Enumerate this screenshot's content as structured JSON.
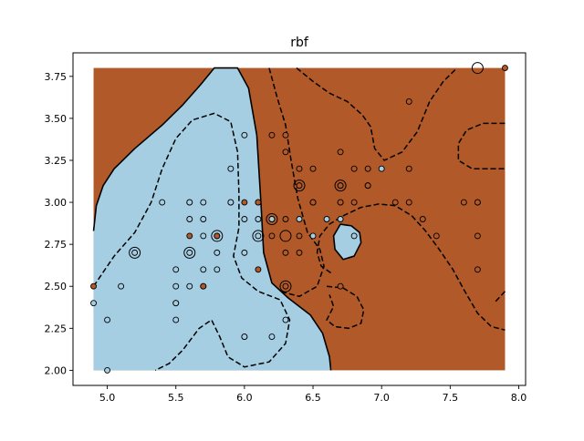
{
  "chart_data": {
    "type": "scatter",
    "title": "rbf",
    "xlabel": "",
    "ylabel": "",
    "xlim": [
      4.75,
      8.05
    ],
    "ylim": [
      1.91,
      3.89
    ],
    "grid": false,
    "legend": "none",
    "x_ticks": [
      5.0,
      5.5,
      6.0,
      6.5,
      7.0,
      7.5,
      8.0
    ],
    "x_tick_labels": [
      "5.0",
      "5.5",
      "6.0",
      "6.5",
      "7.0",
      "7.5",
      "8.0"
    ],
    "y_ticks": [
      2.0,
      2.25,
      2.5,
      2.75,
      3.0,
      3.25,
      3.5,
      3.75
    ],
    "y_tick_labels": [
      "2.00",
      "2.25",
      "2.50",
      "2.75",
      "3.00",
      "3.25",
      "3.50",
      "3.75"
    ],
    "decision_region": {
      "x_range": [
        4.9,
        7.9
      ],
      "y_range": [
        2.0,
        3.8
      ]
    },
    "colors": {
      "class_0": "#a6cee3",
      "class_1": "#b15928",
      "boundary": "#000000",
      "axes": "#000000"
    },
    "decision_boundary": [
      [
        4.9,
        2.83
      ],
      [
        4.92,
        2.98
      ],
      [
        4.97,
        3.1
      ],
      [
        5.05,
        3.2
      ],
      [
        5.2,
        3.32
      ],
      [
        5.4,
        3.46
      ],
      [
        5.55,
        3.58
      ],
      [
        5.68,
        3.7
      ],
      [
        5.78,
        3.8
      ],
      [
        5.95,
        3.8
      ],
      [
        6.03,
        3.68
      ],
      [
        6.09,
        3.4
      ],
      [
        6.12,
        3.0
      ],
      [
        6.14,
        2.7
      ],
      [
        6.2,
        2.52
      ],
      [
        6.32,
        2.43
      ],
      [
        6.48,
        2.33
      ],
      [
        6.57,
        2.22
      ],
      [
        6.62,
        2.08
      ],
      [
        6.63,
        2.0
      ]
    ],
    "decision_island": [
      [
        6.7,
        2.87
      ],
      [
        6.78,
        2.86
      ],
      [
        6.84,
        2.82
      ],
      [
        6.85,
        2.76
      ],
      [
        6.8,
        2.68
      ],
      [
        6.72,
        2.66
      ],
      [
        6.66,
        2.72
      ],
      [
        6.65,
        2.8
      ]
    ],
    "margins": [
      [
        [
          4.9,
          2.5
        ],
        [
          5.05,
          2.68
        ],
        [
          5.2,
          2.82
        ],
        [
          5.32,
          3.0
        ],
        [
          5.4,
          3.2
        ],
        [
          5.5,
          3.38
        ],
        [
          5.62,
          3.49
        ],
        [
          5.78,
          3.53
        ],
        [
          5.9,
          3.48
        ],
        [
          5.95,
          3.3
        ],
        [
          5.96,
          3.05
        ],
        [
          5.96,
          2.85
        ],
        [
          5.92,
          2.68
        ],
        [
          5.98,
          2.55
        ],
        [
          6.1,
          2.47
        ],
        [
          6.26,
          2.42
        ],
        [
          6.33,
          2.3
        ],
        [
          6.3,
          2.16
        ],
        [
          6.18,
          2.05
        ],
        [
          6.0,
          2.02
        ],
        [
          5.88,
          2.08
        ],
        [
          5.82,
          2.2
        ],
        [
          5.76,
          2.3
        ],
        [
          5.67,
          2.25
        ],
        [
          5.55,
          2.12
        ],
        [
          5.45,
          2.04
        ],
        [
          5.35,
          2.0
        ]
      ],
      [
        [
          6.18,
          3.8
        ],
        [
          6.24,
          3.62
        ],
        [
          6.3,
          3.46
        ],
        [
          6.34,
          3.25
        ],
        [
          6.39,
          3.02
        ],
        [
          6.46,
          2.82
        ],
        [
          6.55,
          2.72
        ],
        [
          6.58,
          2.62
        ],
        [
          6.53,
          2.5
        ],
        [
          6.4,
          2.44
        ],
        [
          6.26,
          2.47
        ]
      ],
      [
        [
          6.38,
          3.8
        ],
        [
          6.5,
          3.72
        ],
        [
          6.62,
          3.65
        ],
        [
          6.75,
          3.6
        ],
        [
          6.86,
          3.52
        ],
        [
          6.92,
          3.45
        ],
        [
          6.95,
          3.32
        ],
        [
          7.02,
          3.25
        ],
        [
          7.15,
          3.3
        ],
        [
          7.26,
          3.42
        ],
        [
          7.35,
          3.6
        ],
        [
          7.45,
          3.72
        ],
        [
          7.55,
          3.8
        ]
      ],
      [
        [
          7.9,
          3.47
        ],
        [
          7.74,
          3.47
        ],
        [
          7.62,
          3.43
        ],
        [
          7.56,
          3.35
        ],
        [
          7.56,
          3.25
        ],
        [
          7.66,
          3.2
        ],
        [
          7.78,
          3.2
        ],
        [
          7.9,
          3.2
        ]
      ],
      [
        [
          6.63,
          2.58
        ],
        [
          6.56,
          2.62
        ],
        [
          6.53,
          2.7
        ],
        [
          6.55,
          2.8
        ],
        [
          6.62,
          2.87
        ],
        [
          6.72,
          2.92
        ],
        [
          6.85,
          2.97
        ],
        [
          6.98,
          2.99
        ],
        [
          7.1,
          2.98
        ],
        [
          7.22,
          2.92
        ],
        [
          7.32,
          2.83
        ],
        [
          7.42,
          2.72
        ],
        [
          7.52,
          2.6
        ],
        [
          7.6,
          2.48
        ],
        [
          7.7,
          2.34
        ],
        [
          7.8,
          2.26
        ],
        [
          7.9,
          2.24
        ]
      ],
      [
        [
          7.9,
          2.47
        ],
        [
          7.82,
          2.4
        ]
      ],
      [
        [
          6.6,
          2.5
        ],
        [
          6.72,
          2.49
        ],
        [
          6.82,
          2.44
        ],
        [
          6.87,
          2.36
        ],
        [
          6.85,
          2.28
        ],
        [
          6.76,
          2.25
        ],
        [
          6.66,
          2.26
        ],
        [
          6.6,
          2.3
        ],
        [
          6.65,
          2.38
        ],
        [
          6.62,
          2.45
        ]
      ]
    ],
    "series": [
      {
        "x": [
          4.9,
          5.0,
          5.0,
          5.1,
          5.2,
          5.4,
          5.5,
          5.5,
          5.5,
          5.5,
          5.5,
          5.6,
          5.6,
          5.6,
          5.6,
          5.6,
          5.7,
          5.7,
          5.7,
          5.7,
          5.7,
          5.8,
          5.8,
          5.8,
          5.9,
          5.9,
          5.9,
          6.0,
          6.0,
          6.0,
          6.0,
          6.0,
          6.1,
          6.1,
          6.2,
          6.2,
          6.2,
          6.3,
          6.4,
          6.5,
          6.6,
          6.7,
          6.7,
          6.8,
          6.9,
          7.0
        ],
        "y": [
          2.4,
          2.3,
          2.0,
          2.5,
          2.7,
          3.0,
          2.3,
          2.4,
          2.5,
          2.6,
          2.4,
          3.0,
          2.9,
          2.7,
          2.5,
          3.0,
          2.6,
          2.8,
          2.9,
          3.0,
          2.5,
          2.7,
          2.6,
          2.8,
          3.2,
          3.0,
          3.0,
          2.2,
          2.9,
          2.7,
          3.4,
          2.2,
          2.8,
          2.9,
          2.2,
          2.9,
          2.9,
          2.3,
          2.9,
          2.8,
          2.9,
          3.1,
          2.9,
          2.8,
          3.1,
          3.2
        ]
      },
      {
        "x": [
          4.9,
          5.6,
          5.7,
          5.8,
          6.0,
          6.1,
          6.1,
          6.1,
          6.2,
          6.2,
          6.3,
          6.3,
          6.3,
          6.3,
          6.3,
          6.4,
          6.4,
          6.4,
          6.4,
          6.5,
          6.5,
          6.5,
          6.5,
          6.7,
          6.7,
          6.7,
          6.7,
          6.7,
          6.8,
          6.8,
          6.9,
          6.9,
          7.1,
          7.2,
          7.2,
          7.2,
          7.3,
          7.4,
          7.6,
          7.7,
          7.7,
          7.7,
          7.9,
          7.7
        ],
        "y": [
          2.5,
          2.8,
          2.5,
          2.8,
          3.0,
          3.0,
          2.6,
          3.0,
          3.4,
          2.8,
          3.3,
          3.4,
          2.5,
          2.7,
          2.9,
          3.2,
          3.1,
          2.8,
          2.7,
          3.2,
          3.0,
          3.0,
          3.0,
          2.5,
          3.3,
          3.0,
          3.1,
          3.0,
          3.2,
          3.0,
          3.2,
          3.1,
          3.0,
          3.6,
          3.2,
          3.0,
          2.9,
          2.8,
          3.0,
          3.0,
          2.8,
          2.6,
          3.8,
          3.0
        ]
      }
    ],
    "support_vectors": [
      [
        7.7,
        3.8
      ],
      [
        6.4,
        3.1
      ],
      [
        6.7,
        3.1
      ],
      [
        6.2,
        2.9
      ],
      [
        5.8,
        2.8
      ],
      [
        6.1,
        2.8
      ],
      [
        6.3,
        2.8
      ],
      [
        5.2,
        2.7
      ],
      [
        5.6,
        2.7
      ],
      [
        6.3,
        2.5
      ]
    ]
  }
}
